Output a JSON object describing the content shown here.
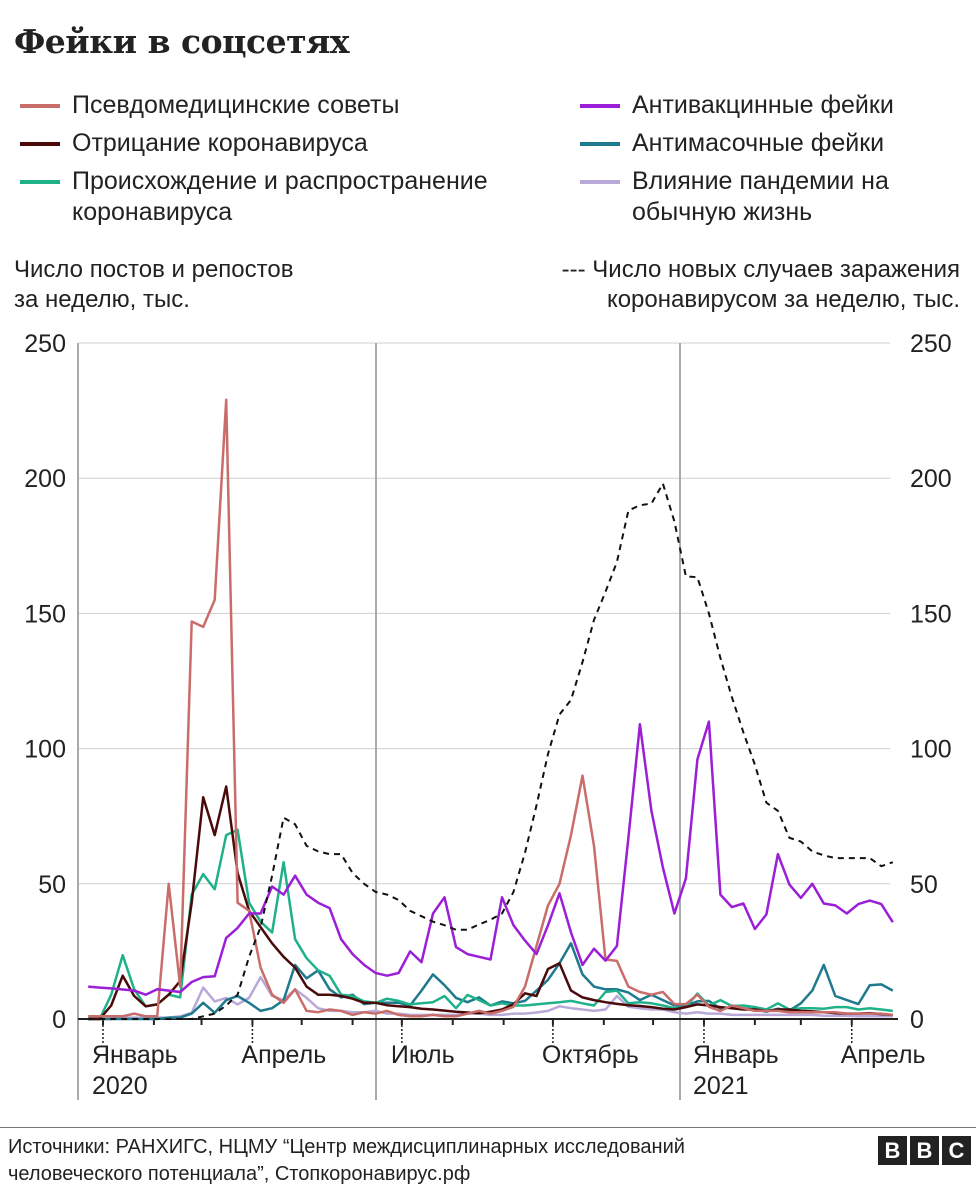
{
  "title": "Фейки в соцсетях",
  "left_axis_note": [
    "Число постов и репостов",
    "за неделю, тыс."
  ],
  "right_axis_note": [
    "--- Число новых случаев заражения",
    "коронавирусом за неделю, тыс."
  ],
  "source": [
    "Источники: РАНХИГС, НЦМУ “Центр междисциплинарных исследований",
    "человеческого потенциала”, Стопкоронавирус.рф"
  ],
  "logo": "BBC",
  "chart_data": {
    "type": "line",
    "ylim": [
      0,
      250
    ],
    "yticks": [
      0,
      50,
      100,
      150,
      200,
      250
    ],
    "y2lim": [
      0,
      250
    ],
    "grid": "horizontal",
    "legend_placement": "top",
    "xticks": [
      {
        "date": "2020-01-01",
        "label": "Январь",
        "year": "2020"
      },
      {
        "date": "2020-04-01",
        "label": "Апрель",
        "year": ""
      },
      {
        "date": "2020-07-01",
        "label": "Июль",
        "year": ""
      },
      {
        "date": "2020-10-01",
        "label": "Октябрь",
        "year": ""
      },
      {
        "date": "2021-01-01",
        "label": "Январь",
        "year": "2021"
      },
      {
        "date": "2021-04-01",
        "label": "Апрель",
        "year": ""
      }
    ],
    "x": [
      "2019-12-23",
      "2019-12-30",
      "2020-01-06",
      "2020-01-13",
      "2020-01-20",
      "2020-01-27",
      "2020-02-03",
      "2020-02-10",
      "2020-02-17",
      "2020-02-24",
      "2020-03-02",
      "2020-03-09",
      "2020-03-16",
      "2020-03-23",
      "2020-03-30",
      "2020-04-06",
      "2020-04-13",
      "2020-04-20",
      "2020-04-27",
      "2020-05-04",
      "2020-05-11",
      "2020-05-18",
      "2020-05-25",
      "2020-06-01",
      "2020-06-08",
      "2020-06-15",
      "2020-06-22",
      "2020-06-29",
      "2020-07-06",
      "2020-07-13",
      "2020-07-20",
      "2020-07-27",
      "2020-08-03",
      "2020-08-10",
      "2020-08-17",
      "2020-08-24",
      "2020-08-31",
      "2020-09-07",
      "2020-09-14",
      "2020-09-21",
      "2020-09-28",
      "2020-10-05",
      "2020-10-12",
      "2020-10-19",
      "2020-10-26",
      "2020-11-02",
      "2020-11-09",
      "2020-11-16",
      "2020-11-23",
      "2020-11-30",
      "2020-12-07",
      "2020-12-14",
      "2020-12-21",
      "2020-12-28",
      "2021-01-04",
      "2021-01-11",
      "2021-01-18",
      "2021-01-25",
      "2021-02-01",
      "2021-02-08",
      "2021-02-15",
      "2021-02-22",
      "2021-03-01",
      "2021-03-08",
      "2021-03-15",
      "2021-03-22",
      "2021-03-29",
      "2021-04-05",
      "2021-04-12",
      "2021-04-19",
      "2021-04-26"
    ],
    "series": [
      {
        "name": "Псевдомедицинские советы",
        "color": "#c96d6a",
        "axis": "left",
        "values": [
          1,
          1,
          1,
          1,
          2,
          1,
          1,
          50,
          12,
          147,
          145,
          155,
          229,
          43,
          40,
          19,
          9,
          6,
          11,
          3,
          2.5,
          3.5,
          3,
          1.5,
          2.5,
          2,
          3,
          1.5,
          1,
          1,
          1.5,
          1,
          1,
          2,
          3,
          2,
          3,
          4.5,
          12,
          27,
          42,
          50,
          68,
          90,
          64,
          22,
          21.5,
          12,
          10,
          9,
          10,
          5.5,
          5.5,
          9,
          4.5,
          3,
          5,
          4,
          3,
          3,
          3,
          2.5,
          2.5,
          2.5,
          2.5,
          2.5,
          2,
          2,
          2,
          2,
          1.5
        ]
      },
      {
        "name": "Отрицание коронавируса",
        "color": "#4a0a0a",
        "axis": "left",
        "values": [
          0,
          0,
          5,
          16,
          8.5,
          4.7,
          5.4,
          9,
          14,
          43,
          82,
          68,
          86,
          54,
          40,
          34,
          28,
          23,
          19,
          12,
          9,
          9,
          8.5,
          7.5,
          6,
          6,
          5.1,
          4.7,
          4.4,
          3.8,
          3.5,
          3.1,
          2.7,
          2.4,
          2.2,
          2.7,
          3.5,
          5.5,
          9.5,
          8.5,
          18.5,
          20.6,
          10.5,
          8,
          7,
          6.2,
          5.6,
          5.1,
          4.8,
          4.4,
          3.8,
          3.5,
          4.4,
          5.4,
          5,
          4.4,
          4,
          3.5,
          3.5,
          3,
          3.5,
          3.5,
          3,
          2.8,
          2.5,
          2.2,
          2,
          2,
          2.2,
          1.8,
          1.5
        ]
      },
      {
        "name": "Происхождение и распространение коронавируса",
        "color": "#1fb28a",
        "axis": "left",
        "values": [
          0,
          0,
          9,
          23.6,
          11,
          4.7,
          5.4,
          9,
          8,
          46,
          53.6,
          48,
          68,
          70,
          43,
          36,
          32,
          58,
          29.5,
          22.5,
          18,
          16,
          9,
          8.5,
          6.5,
          6,
          7.5,
          6.7,
          5.4,
          5.8,
          6.2,
          8.5,
          4,
          8.9,
          7,
          5,
          5.8,
          5,
          5,
          5.4,
          5.8,
          6.2,
          6.7,
          5.8,
          5,
          10,
          10.5,
          5.8,
          6.2,
          5.8,
          5,
          4,
          4.4,
          9.4,
          5,
          7,
          4.8,
          5,
          4.4,
          3.5,
          5.8,
          3.5,
          4,
          4,
          3.8,
          4.4,
          4.4,
          3.5,
          4,
          3.5,
          3
        ]
      },
      {
        "name": "Антивакцинные фейки",
        "color": "#9b1fd6",
        "axis": "left",
        "values": [
          12,
          11.6,
          11.3,
          10.9,
          10.5,
          9,
          11,
          10.5,
          10,
          13.7,
          15.5,
          15.8,
          30,
          33.7,
          39,
          39,
          49,
          46,
          53,
          46,
          43,
          41,
          29.5,
          24,
          20,
          17,
          16,
          17,
          25,
          21,
          39,
          45,
          26.6,
          24,
          23,
          22,
          45,
          34.7,
          29,
          24,
          34.7,
          46.5,
          32,
          20,
          26,
          21.6,
          27,
          67,
          109,
          77,
          56,
          39,
          52,
          96,
          110,
          46,
          41.4,
          42.7,
          33.3,
          38.7,
          61,
          49.7,
          44.8,
          50,
          42.7,
          42,
          39,
          42.5,
          43.8,
          42.5,
          35.8
        ]
      },
      {
        "name": "Антимасочные фейки",
        "color": "#1e7a8c",
        "axis": "left",
        "values": [
          0,
          0,
          0,
          0,
          0,
          0,
          0,
          0.5,
          0.5,
          2,
          6,
          2.3,
          7,
          8.5,
          6,
          3,
          4,
          7,
          20,
          15,
          18,
          11,
          8,
          9,
          5.5,
          6,
          6,
          6,
          5,
          10.5,
          16.5,
          12.5,
          7.8,
          6.2,
          8,
          5,
          6.5,
          5.8,
          6.7,
          10.5,
          14.5,
          20.6,
          28,
          16.5,
          12,
          11,
          11,
          9.8,
          7,
          9,
          7,
          5,
          5,
          6.5,
          6.7,
          3.8,
          4.4,
          4,
          3.5,
          2.7,
          3.8,
          3.1,
          5.8,
          10.5,
          20,
          8.5,
          7,
          5.5,
          12.5,
          12.8,
          10.5
        ]
      },
      {
        "name": "Влияние пандемии на обычную жизнь",
        "color": "#b9a8d8",
        "axis": "left",
        "values": [
          0,
          0,
          0,
          0.5,
          0.5,
          0.5,
          0.5,
          0.5,
          1,
          2.3,
          11.6,
          6.5,
          7.8,
          5.4,
          7.8,
          15.5,
          8.5,
          7,
          11,
          7.8,
          4,
          3,
          3,
          2.5,
          2.5,
          3,
          2,
          2,
          1.5,
          1.5,
          1.5,
          1.5,
          1.5,
          2,
          2,
          1.5,
          1.5,
          2,
          2,
          2.4,
          3,
          4.7,
          4,
          3.5,
          3,
          3.5,
          8.5,
          4.5,
          4,
          3.5,
          3.5,
          2.5,
          2,
          2.5,
          2,
          2,
          1.5,
          1.5,
          1.5,
          1.5,
          1.5,
          1.5,
          1.5,
          1.5,
          1.2,
          1.2,
          1.2,
          1,
          1,
          1,
          1
        ]
      },
      {
        "name": "Число новых случаев заражения коронавирусом за неделю, тыс.",
        "color": "#111111",
        "axis": "right",
        "dashed": true,
        "values": [
          0,
          0,
          0,
          0,
          0,
          0,
          0,
          0,
          0,
          0,
          1,
          2,
          5,
          9,
          23,
          34,
          53,
          74.5,
          72,
          64,
          62,
          61,
          61,
          54,
          50,
          47,
          46,
          44,
          40,
          38,
          36,
          34.7,
          33,
          33,
          35,
          36.7,
          39,
          47,
          61.5,
          79,
          98,
          112.6,
          118,
          132,
          147.6,
          158,
          169,
          188,
          190,
          190.6,
          198,
          184,
          163.7,
          163.4,
          150,
          133.5,
          119,
          106,
          94,
          80,
          77,
          67,
          65.6,
          62,
          60.5,
          59.5,
          59.5,
          59.5,
          59.5,
          56.5,
          58
        ]
      }
    ]
  }
}
